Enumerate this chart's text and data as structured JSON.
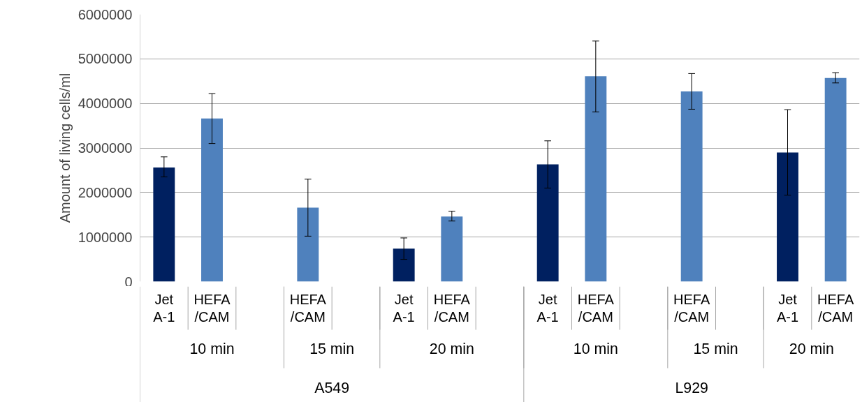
{
  "chart_data": {
    "type": "bar",
    "ylabel": "Amount of living cells/ml",
    "categories": [
      [
        "A549",
        "10 min",
        "Jet A-1"
      ],
      [
        null,
        null,
        "HEFA/CAM"
      ],
      [
        null,
        null,
        null
      ],
      [
        null,
        "15 min",
        "HEFA/CAM"
      ],
      [
        null,
        null,
        null
      ],
      [
        null,
        "20 min",
        "Jet A-1"
      ],
      [
        null,
        null,
        "HEFA/CAM"
      ],
      [
        null,
        null,
        null
      ],
      [
        "L929",
        "10 min",
        "Jet A-1"
      ],
      [
        null,
        null,
        "HEFA/CAM"
      ],
      [
        null,
        null,
        null
      ],
      [
        null,
        "15 min",
        "HEFA/CAM"
      ],
      [
        null,
        null,
        null
      ],
      [
        null,
        "20 min",
        "Jet A-1"
      ],
      [
        null,
        null,
        "HEFA/CAM"
      ]
    ],
    "values": [
      2560000,
      3660000,
      null,
      1660000,
      null,
      740000,
      1460000,
      null,
      2630000,
      4610000,
      null,
      4270000,
      null,
      2900000,
      4570000
    ],
    "colors": [
      "#002060",
      "#4f81bd",
      null,
      "#4f81bd",
      null,
      "#002060",
      "#4f81bd",
      null,
      "#002060",
      "#4f81bd",
      null,
      "#4f81bd",
      null,
      "#002060",
      "#4f81bd"
    ],
    "errors": [
      [
        2350000,
        2800000
      ],
      [
        3100000,
        4220000
      ],
      null,
      [
        1020000,
        2300000
      ],
      null,
      [
        500000,
        980000
      ],
      [
        1360000,
        1580000
      ],
      null,
      [
        2100000,
        3160000
      ],
      [
        3810000,
        5400000
      ],
      null,
      [
        3870000,
        4670000
      ],
      null,
      [
        1940000,
        3860000
      ],
      [
        4460000,
        4690000
      ]
    ],
    "ylim": [
      0,
      6000000
    ],
    "yticks": [
      {
        "value": 0,
        "label": "0"
      },
      {
        "value": 1000000,
        "label": "1000000"
      },
      {
        "value": 2000000,
        "label": "2000000"
      },
      {
        "value": 3000000,
        "label": "3000000"
      },
      {
        "value": 4000000,
        "label": "4000000"
      },
      {
        "value": 5000000,
        "label": "5000000"
      },
      {
        "value": 6000000,
        "label": "6000000"
      }
    ],
    "grid": "y"
  }
}
